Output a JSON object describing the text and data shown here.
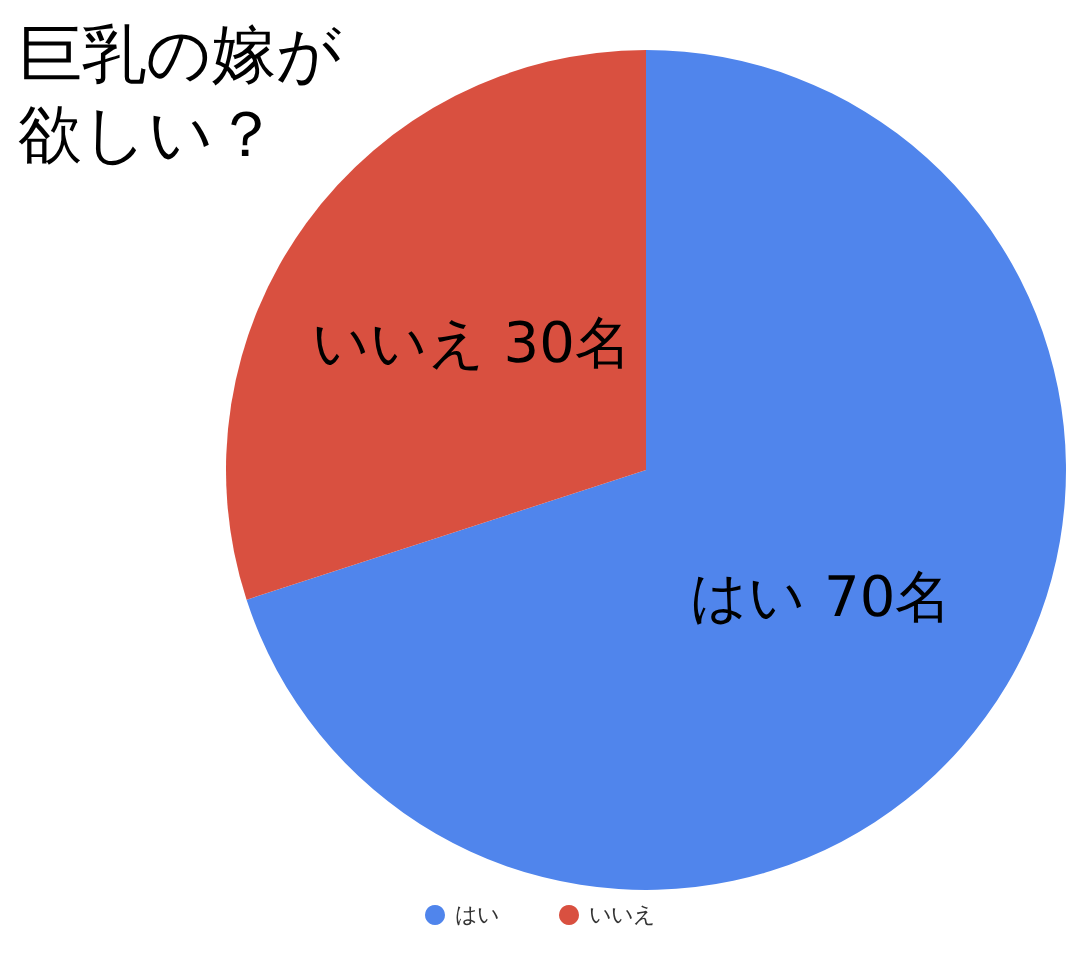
{
  "chart_data": {
    "type": "pie",
    "title": "巨乳の嫁が欲しい？",
    "categories": [
      "はい",
      "いいえ"
    ],
    "values": [
      70,
      30
    ],
    "colors": [
      "#5085ec",
      "#d95040"
    ],
    "value_labels": [
      "はい 70名",
      "いいえ 30名"
    ],
    "legend": "bottom"
  }
}
